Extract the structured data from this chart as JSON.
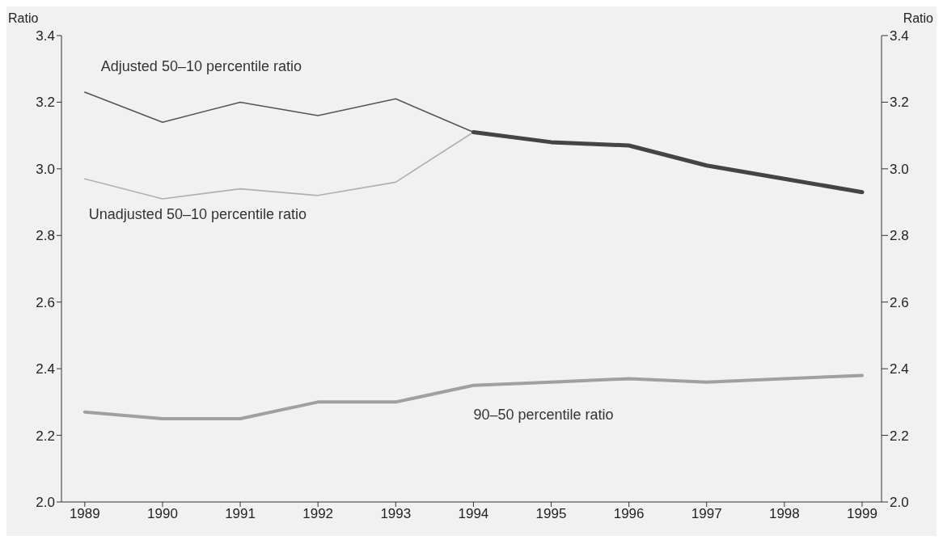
{
  "chart_data": {
    "type": "line",
    "categories": [
      "1989",
      "1990",
      "1991",
      "1992",
      "1993",
      "1994",
      "1995",
      "1996",
      "1997",
      "1998",
      "1999"
    ],
    "series": [
      {
        "name": "Adjusted 50–10 percentile ratio",
        "color": "#555555",
        "values": [
          3.23,
          3.14,
          3.2,
          3.16,
          3.21,
          3.11,
          null,
          null,
          null,
          null,
          null
        ]
      },
      {
        "name": "Unadjusted 50–10 percentile ratio",
        "color": "#b0b0b0",
        "values": [
          2.97,
          2.91,
          2.94,
          2.92,
          2.96,
          3.11,
          null,
          null,
          null,
          null,
          null
        ]
      },
      {
        "color": "#444444",
        "values": [
          null,
          null,
          null,
          null,
          null,
          3.11,
          3.08,
          3.07,
          3.01,
          2.97,
          2.93
        ]
      },
      {
        "name": "90–50 percentile ratio",
        "color": "#a0a0a0",
        "values": [
          2.27,
          2.25,
          2.25,
          2.3,
          2.3,
          2.35,
          2.36,
          2.37,
          2.36,
          2.37,
          2.38
        ]
      }
    ],
    "ylabel": "Ratio",
    "y2label": "Ratio",
    "ylim": [
      2.0,
      3.4
    ],
    "yticks": [
      {
        "value": 2.0,
        "label": "2.0"
      },
      {
        "value": 2.2,
        "label": "2.2"
      },
      {
        "value": 2.4,
        "label": "2.4"
      },
      {
        "value": 2.6,
        "label": "2.6"
      },
      {
        "value": 2.8,
        "label": "2.8"
      },
      {
        "value": 3.0,
        "label": "3.0"
      },
      {
        "value": 3.2,
        "label": "3.2"
      },
      {
        "value": 3.4,
        "label": "3.4"
      }
    ],
    "y2lim": [
      2.0,
      3.4
    ],
    "y2ticks": [
      {
        "value": 2.0,
        "label": "2.0"
      },
      {
        "value": 2.2,
        "label": "2.2"
      },
      {
        "value": 2.4,
        "label": "2.4"
      },
      {
        "value": 2.6,
        "label": "2.6"
      },
      {
        "value": 2.8,
        "label": "2.8"
      },
      {
        "value": 3.0,
        "label": "3.0"
      },
      {
        "value": 3.2,
        "label": "3.2"
      },
      {
        "value": 3.4,
        "label": "3.4"
      }
    ],
    "marker": "none",
    "line_style": "solid"
  }
}
